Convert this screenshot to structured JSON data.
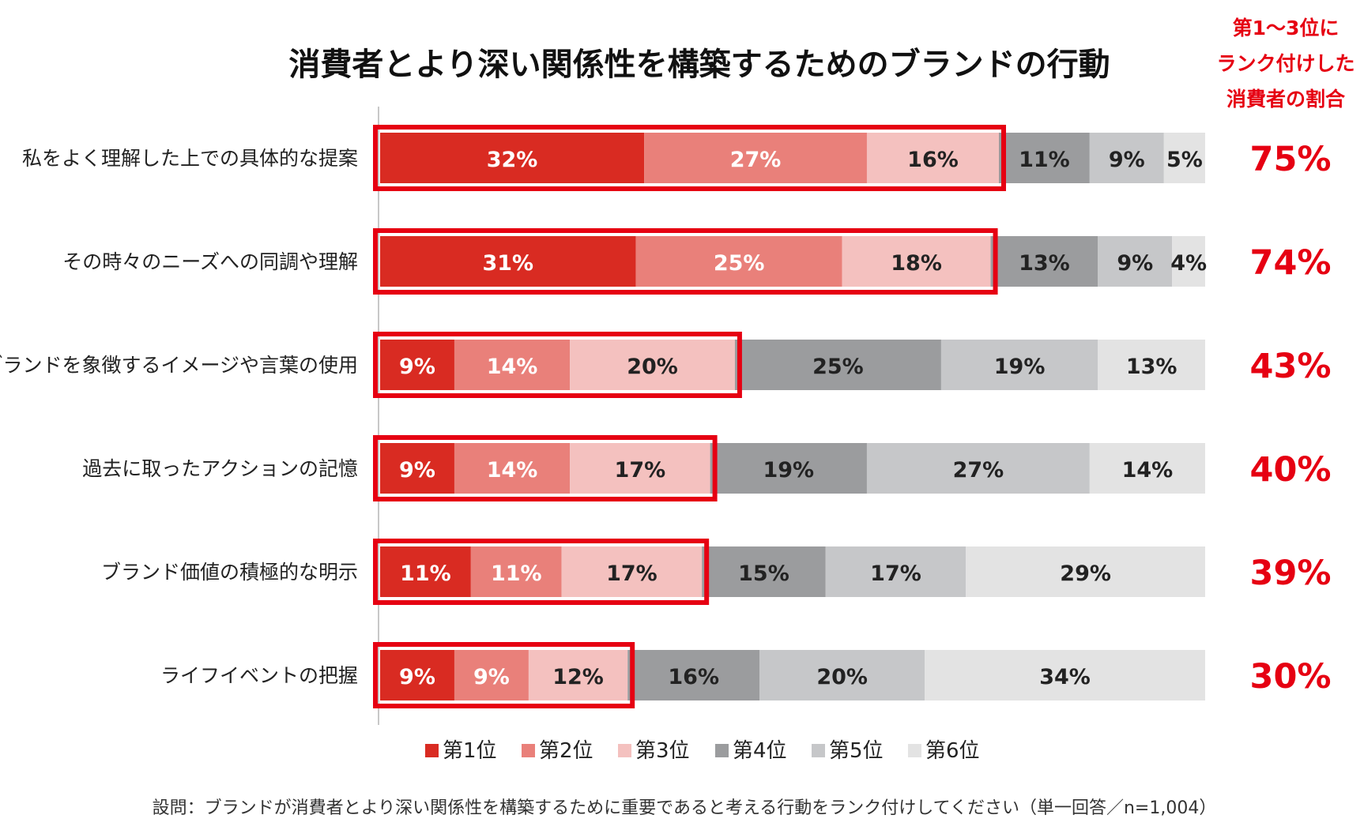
{
  "chart_data": {
    "type": "bar",
    "orientation": "horizontal",
    "stacked": true,
    "title": "消費者とより深い関係性を構築するためのブランドの行動",
    "side_header": [
      "第1～3位に",
      "ランク付けした",
      "消費者の割合"
    ],
    "unit": "%",
    "xlim": [
      0,
      100
    ],
    "categories": [
      "私をよく理解した上での具体的な提案",
      "その時々のニーズへの同調や理解",
      "ブランドを象徴するイメージや言葉の使用",
      "過去に取ったアクションの記憶",
      "ブランド価値の積極的な明示",
      "ライフイベントの把握"
    ],
    "series": [
      {
        "name": "第1位",
        "color": "#d92b22",
        "values": [
          32,
          31,
          9,
          9,
          11,
          9
        ]
      },
      {
        "name": "第2位",
        "color": "#e9807a",
        "values": [
          27,
          25,
          14,
          14,
          11,
          9
        ]
      },
      {
        "name": "第3位",
        "color": "#f4c1bf",
        "values": [
          16,
          18,
          20,
          17,
          17,
          12
        ]
      },
      {
        "name": "第4位",
        "color": "#9b9c9e",
        "values": [
          11,
          13,
          25,
          19,
          15,
          16
        ]
      },
      {
        "name": "第5位",
        "color": "#c6c7c9",
        "values": [
          9,
          9,
          19,
          27,
          17,
          20
        ]
      },
      {
        "name": "第6位",
        "color": "#e3e3e3",
        "values": [
          5,
          4,
          13,
          14,
          29,
          34
        ]
      }
    ],
    "top3_share": [
      "75%",
      "74%",
      "43%",
      "40%",
      "39%",
      "30%"
    ],
    "highlight_color": "#e60012",
    "label_colors": {
      "light": "#ffffff",
      "dark": "#222222"
    },
    "footnote": "設問：ブランドが消費者とより深い関係性を構築するために重要であると考える行動をランク付けしてください（単一回答／n=1,004）"
  }
}
